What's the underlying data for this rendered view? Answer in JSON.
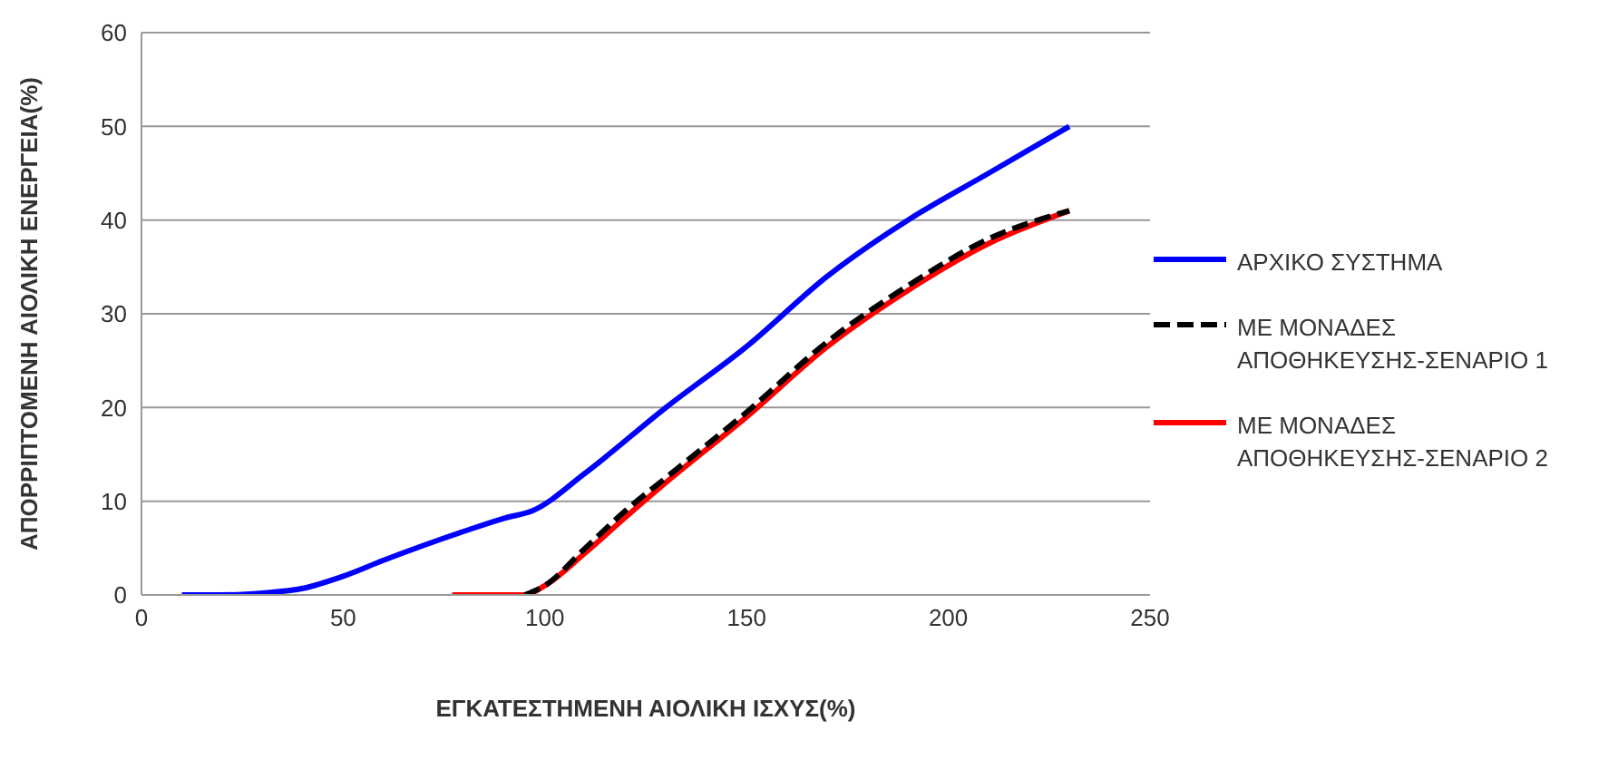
{
  "chart_data": {
    "type": "line",
    "xlabel": "ΕΓΚΑΤΕΣΤΗΜΕΝΗ ΑΙΟΛΙΚΗ ΙΣΧΥΣ(%)",
    "ylabel": "ΑΠΟΡΡΙΠΤΟΜΕΝΗ ΑΙΟΛΙΚΗ ΕΝΕΡΓΕΙΑ(%)",
    "xlim": [
      0,
      250
    ],
    "xticks": [
      0,
      50,
      100,
      150,
      200,
      250
    ],
    "ylim": [
      0,
      60
    ],
    "yticks": [
      0,
      10,
      20,
      30,
      40,
      50,
      60
    ],
    "grid": "y",
    "legend": "right",
    "marker": "none",
    "line_style": "solid",
    "series": [
      {
        "name": "ΑΡΧΙΚΟ ΣΥΣΤΗΜΑ",
        "color": "#0000ff",
        "x": [
          10,
          20,
          30,
          40,
          50,
          60,
          70,
          80,
          90,
          97,
          110,
          130,
          150,
          170,
          190,
          210,
          230
        ],
        "values": [
          0,
          0,
          0.2,
          0.7,
          2,
          3.7,
          5.3,
          6.8,
          8.2,
          9,
          13,
          20,
          26.5,
          34,
          40,
          45,
          50
        ]
      },
      {
        "name": "ΜΕ ΜΟΝΑΔΕΣ ΑΠΟΘΗΚΕΥΣΗΣ-ΣΕΝΑΡΙΟ 1",
        "color": "#000000",
        "line_style": "dashed",
        "x": [
          95,
          100,
          110,
          120,
          130,
          150,
          170,
          190,
          210,
          230
        ],
        "values": [
          0,
          1,
          5,
          9,
          12.5,
          19.5,
          27,
          33,
          38,
          41
        ]
      },
      {
        "name": "ΜΕ ΜΟΝΑΔΕΣ ΑΠΟΘΗΚΕΥΣΗΣ-ΣΕΝΑΡΙΟ 2",
        "color": "#ff0000",
        "x": [
          77,
          85,
          95,
          100,
          110,
          120,
          130,
          150,
          170,
          190,
          210,
          230
        ],
        "values": [
          0,
          0,
          0,
          1,
          4.5,
          8.3,
          12,
          19,
          26.5,
          32.5,
          37.5,
          41
        ]
      }
    ]
  }
}
